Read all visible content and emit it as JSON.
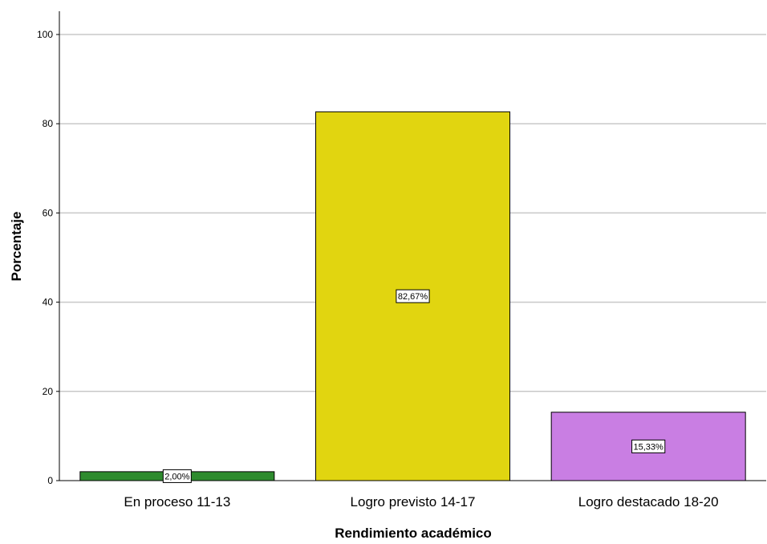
{
  "chart_data": {
    "type": "bar",
    "categories": [
      "En proceso 11-13",
      "Logro previsto 14-17",
      "Logro destacado 18-20"
    ],
    "values": [
      2.0,
      82.67,
      15.33
    ],
    "data_labels": [
      "2,00%",
      "82,67%",
      "15,33%"
    ],
    "colors": [
      "#2e8b2e",
      "#e1d510",
      "#c97ee3"
    ],
    "xlabel": "Rendimiento académico",
    "ylabel": "Porcentaje",
    "ylim": [
      0,
      100
    ],
    "yticks": [
      0,
      20,
      40,
      60,
      80,
      100
    ],
    "ytick_labels": [
      "0",
      "20",
      "40",
      "60",
      "80",
      "100"
    ],
    "grid": true,
    "legend": false
  }
}
